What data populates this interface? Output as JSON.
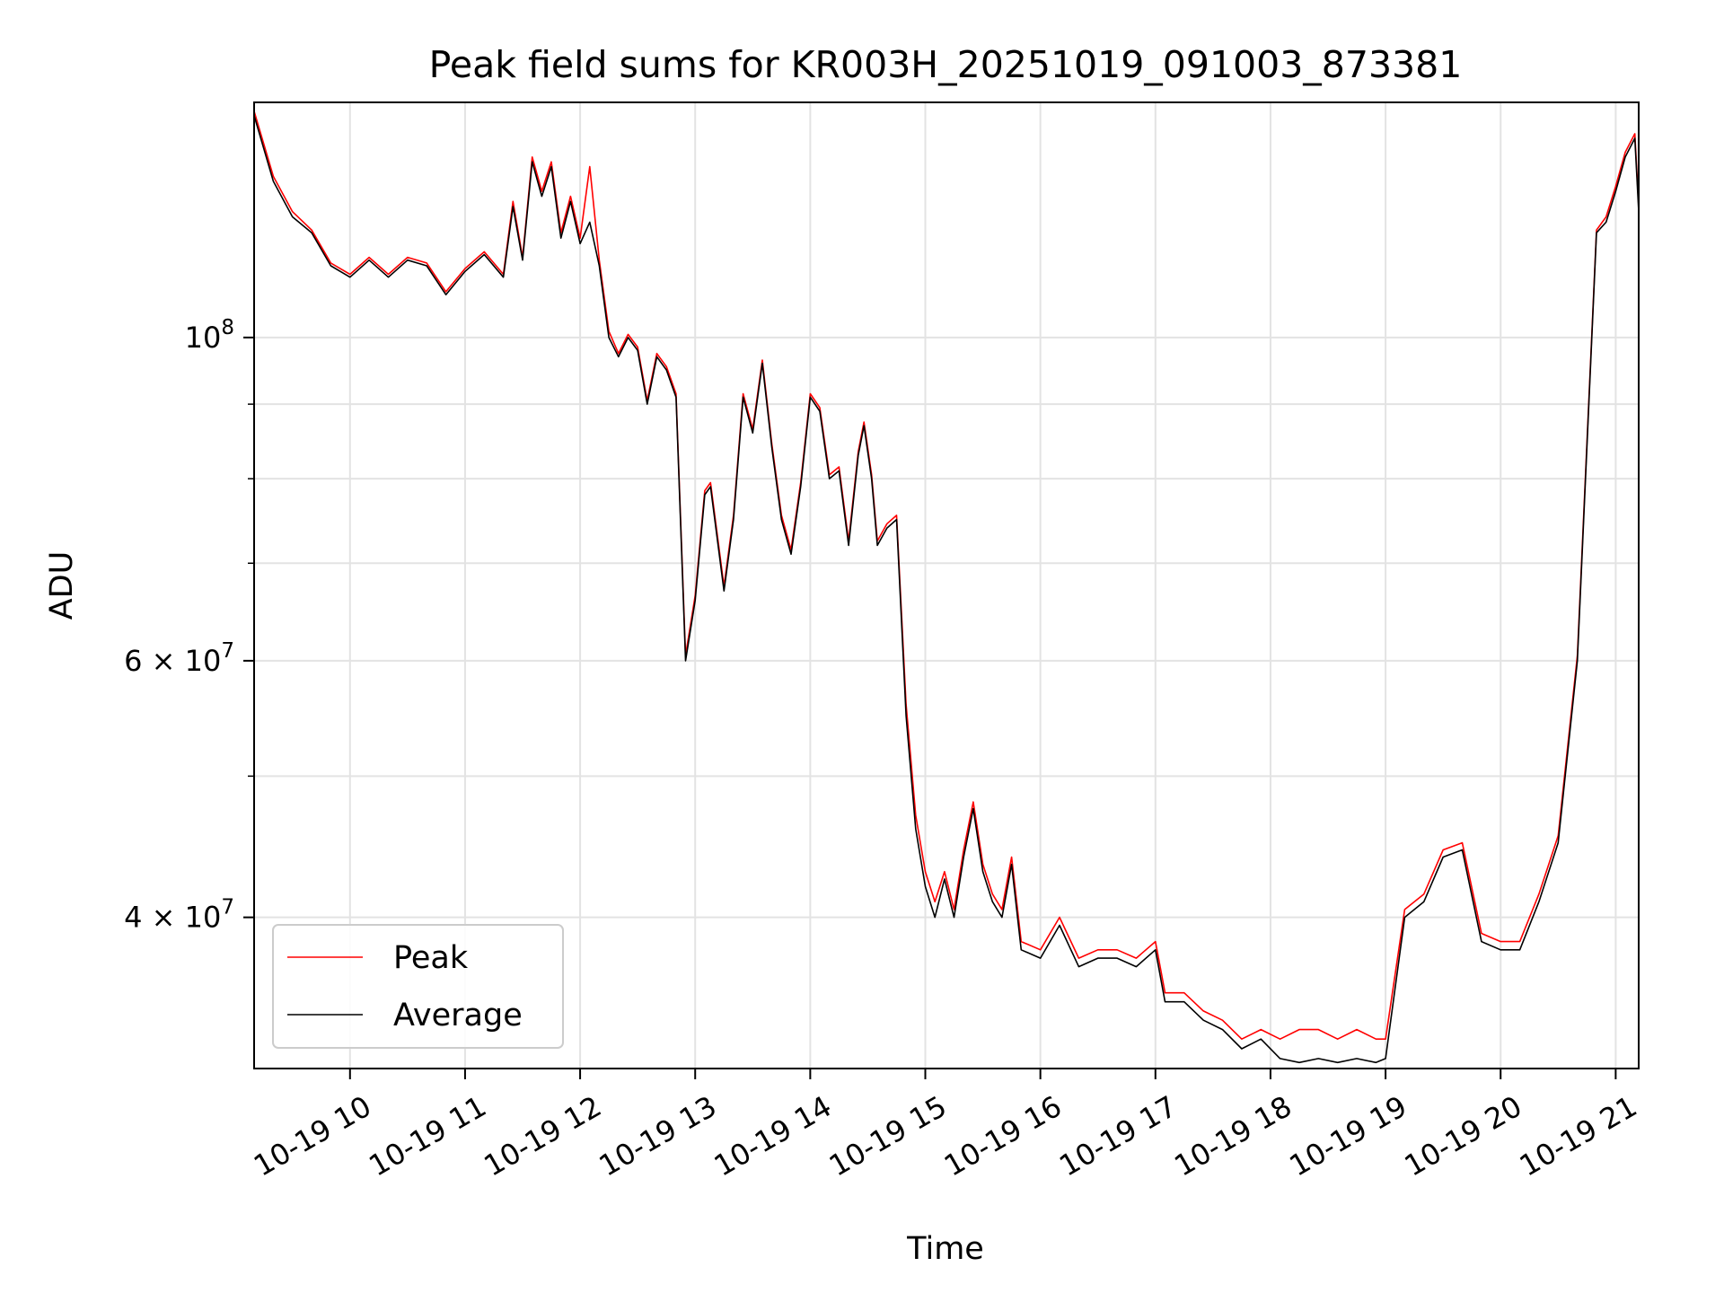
{
  "chart_data": {
    "type": "line",
    "title": "Peak field sums for KR003H_20251019_091003_873381",
    "xlabel": "Time",
    "ylabel": "ADU",
    "y_scale": "log",
    "ylim": [
      31500000,
      145000000
    ],
    "xlim": [
      "2025-10-19 09:10",
      "2025-10-19 21:12"
    ],
    "x_ticks": [
      "10-19 10",
      "10-19 11",
      "10-19 12",
      "10-19 13",
      "10-19 14",
      "10-19 15",
      "10-19 16",
      "10-19 17",
      "10-19 18",
      "10-19 19",
      "10-19 20",
      "10-19 21"
    ],
    "y_ticks": [
      {
        "value": 40000000,
        "mantissa": "4",
        "exponent": "7"
      },
      {
        "value": 60000000,
        "mantissa": "6",
        "exponent": "7"
      },
      {
        "value": 100000000,
        "mantissa": "",
        "exponent": "8"
      }
    ],
    "y_minor_ticks": [
      50000000,
      70000000,
      80000000,
      90000000
    ],
    "grid": true,
    "legend_position": "lower-left",
    "colors": {
      "peak": "#ff0000",
      "average": "#000000"
    },
    "series": [
      {
        "name": "Average",
        "x": [
          "2025-10-19 09:10",
          "2025-10-19 09:20",
          "2025-10-19 09:30",
          "2025-10-19 09:40",
          "2025-10-19 09:50",
          "2025-10-19 10:00",
          "2025-10-19 10:10",
          "2025-10-19 10:20",
          "2025-10-19 10:30",
          "2025-10-19 10:40",
          "2025-10-19 10:50",
          "2025-10-19 11:00",
          "2025-10-19 11:10",
          "2025-10-19 11:20",
          "2025-10-19 11:25",
          "2025-10-19 11:30",
          "2025-10-19 11:35",
          "2025-10-19 11:40",
          "2025-10-19 11:45",
          "2025-10-19 11:50",
          "2025-10-19 11:55",
          "2025-10-19 12:00",
          "2025-10-19 12:05",
          "2025-10-19 12:10",
          "2025-10-19 12:15",
          "2025-10-19 12:20",
          "2025-10-19 12:25",
          "2025-10-19 12:30",
          "2025-10-19 12:35",
          "2025-10-19 12:40",
          "2025-10-19 12:45",
          "2025-10-19 12:50",
          "2025-10-19 12:55",
          "2025-10-19 13:00",
          "2025-10-19 13:05",
          "2025-10-19 13:08",
          "2025-10-19 13:15",
          "2025-10-19 13:20",
          "2025-10-19 13:25",
          "2025-10-19 13:30",
          "2025-10-19 13:35",
          "2025-10-19 13:40",
          "2025-10-19 13:45",
          "2025-10-19 13:50",
          "2025-10-19 13:55",
          "2025-10-19 14:00",
          "2025-10-19 14:05",
          "2025-10-19 14:10",
          "2025-10-19 14:15",
          "2025-10-19 14:20",
          "2025-10-19 14:25",
          "2025-10-19 14:28",
          "2025-10-19 14:32",
          "2025-10-19 14:35",
          "2025-10-19 14:40",
          "2025-10-19 14:45",
          "2025-10-19 14:50",
          "2025-10-19 14:55",
          "2025-10-19 15:00",
          "2025-10-19 15:05",
          "2025-10-19 15:10",
          "2025-10-19 15:15",
          "2025-10-19 15:20",
          "2025-10-19 15:25",
          "2025-10-19 15:30",
          "2025-10-19 15:35",
          "2025-10-19 15:40",
          "2025-10-19 15:45",
          "2025-10-19 15:50",
          "2025-10-19 16:00",
          "2025-10-19 16:10",
          "2025-10-19 16:20",
          "2025-10-19 16:30",
          "2025-10-19 16:40",
          "2025-10-19 16:50",
          "2025-10-19 17:00",
          "2025-10-19 17:05",
          "2025-10-19 17:15",
          "2025-10-19 17:25",
          "2025-10-19 17:35",
          "2025-10-19 17:45",
          "2025-10-19 17:55",
          "2025-10-19 18:05",
          "2025-10-19 18:15",
          "2025-10-19 18:25",
          "2025-10-19 18:35",
          "2025-10-19 18:45",
          "2025-10-19 18:55",
          "2025-10-19 19:00",
          "2025-10-19 19:10",
          "2025-10-19 19:20",
          "2025-10-19 19:30",
          "2025-10-19 19:40",
          "2025-10-19 19:50",
          "2025-10-19 20:00",
          "2025-10-19 20:10",
          "2025-10-19 20:20",
          "2025-10-19 20:30",
          "2025-10-19 20:40",
          "2025-10-19 20:50",
          "2025-10-19 20:55",
          "2025-10-19 21:00",
          "2025-10-19 21:05",
          "2025-10-19 21:10",
          "2025-10-19 21:12"
        ],
        "values": [
          142000000,
          128000000,
          121000000,
          118000000,
          112000000,
          110000000,
          113000000,
          110000000,
          113000000,
          112000000,
          107000000,
          111000000,
          114000000,
          110000000,
          123000000,
          113000000,
          132000000,
          125000000,
          131000000,
          117000000,
          124000000,
          116000000,
          120000000,
          112000000,
          100000000,
          97000000,
          100000000,
          98000000,
          90000000,
          97000000,
          95000000,
          91000000,
          60000000,
          66000000,
          78000000,
          79000000,
          67000000,
          75000000,
          91000000,
          86000000,
          96000000,
          84000000,
          75000000,
          71000000,
          79000000,
          91000000,
          89000000,
          80000000,
          81000000,
          72000000,
          83000000,
          87000000,
          80000000,
          72000000,
          74000000,
          75000000,
          55000000,
          46000000,
          42000000,
          40000000,
          42500000,
          40000000,
          44000000,
          47500000,
          43000000,
          41000000,
          40000000,
          43500000,
          38000000,
          37500000,
          39500000,
          37000000,
          37500000,
          37500000,
          37000000,
          38000000,
          35000000,
          35000000,
          34000000,
          33500000,
          32500000,
          33000000,
          32000000,
          31800000,
          32000000,
          31800000,
          32000000,
          31800000,
          32000000,
          40000000,
          41000000,
          44000000,
          44500000,
          38500000,
          38000000,
          38000000,
          41000000,
          45000000,
          60000000,
          118000000,
          120000000,
          126000000,
          133000000,
          137000000,
          122000000
        ]
      },
      {
        "name": "Peak",
        "x": [
          "2025-10-19 09:10",
          "2025-10-19 09:20",
          "2025-10-19 09:30",
          "2025-10-19 09:40",
          "2025-10-19 09:50",
          "2025-10-19 10:00",
          "2025-10-19 10:10",
          "2025-10-19 10:20",
          "2025-10-19 10:30",
          "2025-10-19 10:40",
          "2025-10-19 10:50",
          "2025-10-19 11:00",
          "2025-10-19 11:10",
          "2025-10-19 11:20",
          "2025-10-19 11:25",
          "2025-10-19 11:30",
          "2025-10-19 11:35",
          "2025-10-19 11:40",
          "2025-10-19 11:45",
          "2025-10-19 11:50",
          "2025-10-19 11:55",
          "2025-10-19 12:00",
          "2025-10-19 12:05",
          "2025-10-19 12:10",
          "2025-10-19 12:15",
          "2025-10-19 12:20",
          "2025-10-19 12:25",
          "2025-10-19 12:30",
          "2025-10-19 12:35",
          "2025-10-19 12:40",
          "2025-10-19 12:45",
          "2025-10-19 12:50",
          "2025-10-19 12:55",
          "2025-10-19 13:00",
          "2025-10-19 13:05",
          "2025-10-19 13:08",
          "2025-10-19 13:15",
          "2025-10-19 13:20",
          "2025-10-19 13:25",
          "2025-10-19 13:30",
          "2025-10-19 13:35",
          "2025-10-19 13:40",
          "2025-10-19 13:45",
          "2025-10-19 13:50",
          "2025-10-19 13:55",
          "2025-10-19 14:00",
          "2025-10-19 14:05",
          "2025-10-19 14:10",
          "2025-10-19 14:15",
          "2025-10-19 14:20",
          "2025-10-19 14:25",
          "2025-10-19 14:28",
          "2025-10-19 14:32",
          "2025-10-19 14:35",
          "2025-10-19 14:40",
          "2025-10-19 14:45",
          "2025-10-19 14:50",
          "2025-10-19 14:55",
          "2025-10-19 15:00",
          "2025-10-19 15:05",
          "2025-10-19 15:10",
          "2025-10-19 15:15",
          "2025-10-19 15:20",
          "2025-10-19 15:25",
          "2025-10-19 15:30",
          "2025-10-19 15:35",
          "2025-10-19 15:40",
          "2025-10-19 15:45",
          "2025-10-19 15:50",
          "2025-10-19 16:00",
          "2025-10-19 16:10",
          "2025-10-19 16:20",
          "2025-10-19 16:30",
          "2025-10-19 16:40",
          "2025-10-19 16:50",
          "2025-10-19 17:00",
          "2025-10-19 17:05",
          "2025-10-19 17:15",
          "2025-10-19 17:25",
          "2025-10-19 17:35",
          "2025-10-19 17:45",
          "2025-10-19 17:55",
          "2025-10-19 18:05",
          "2025-10-19 18:15",
          "2025-10-19 18:25",
          "2025-10-19 18:35",
          "2025-10-19 18:45",
          "2025-10-19 18:55",
          "2025-10-19 19:00",
          "2025-10-19 19:10",
          "2025-10-19 19:20",
          "2025-10-19 19:30",
          "2025-10-19 19:40",
          "2025-10-19 19:50",
          "2025-10-19 20:00",
          "2025-10-19 20:10",
          "2025-10-19 20:20",
          "2025-10-19 20:30",
          "2025-10-19 20:40",
          "2025-10-19 20:50",
          "2025-10-19 20:55",
          "2025-10-19 21:00",
          "2025-10-19 21:05",
          "2025-10-19 21:10",
          "2025-10-19 21:12"
        ],
        "values": [
          143000000,
          129000000,
          122000000,
          118500000,
          112500000,
          110500000,
          113500000,
          110500000,
          113500000,
          112500000,
          107500000,
          111500000,
          114500000,
          110500000,
          124000000,
          113500000,
          133000000,
          126000000,
          132000000,
          118000000,
          125000000,
          117000000,
          131000000,
          113000000,
          101000000,
          97500000,
          100500000,
          98500000,
          90500000,
          97500000,
          95500000,
          91500000,
          60500000,
          66500000,
          78500000,
          79500000,
          67500000,
          75500000,
          91500000,
          86500000,
          96500000,
          84500000,
          75500000,
          71500000,
          79500000,
          91500000,
          89500000,
          80500000,
          81500000,
          72500000,
          83500000,
          87500000,
          80500000,
          72500000,
          74500000,
          75500000,
          56000000,
          47000000,
          43000000,
          41000000,
          43000000,
          40500000,
          44500000,
          48000000,
          43500000,
          41500000,
          40500000,
          44000000,
          38500000,
          38000000,
          40000000,
          37500000,
          38000000,
          38000000,
          37500000,
          38500000,
          35500000,
          35500000,
          34500000,
          34000000,
          33000000,
          33500000,
          33000000,
          33500000,
          33500000,
          33000000,
          33500000,
          33000000,
          33000000,
          40500000,
          41500000,
          44500000,
          45000000,
          39000000,
          38500000,
          38500000,
          41500000,
          45500000,
          60500000,
          118500000,
          121000000,
          127000000,
          134000000,
          138000000,
          123000000
        ]
      }
    ]
  }
}
